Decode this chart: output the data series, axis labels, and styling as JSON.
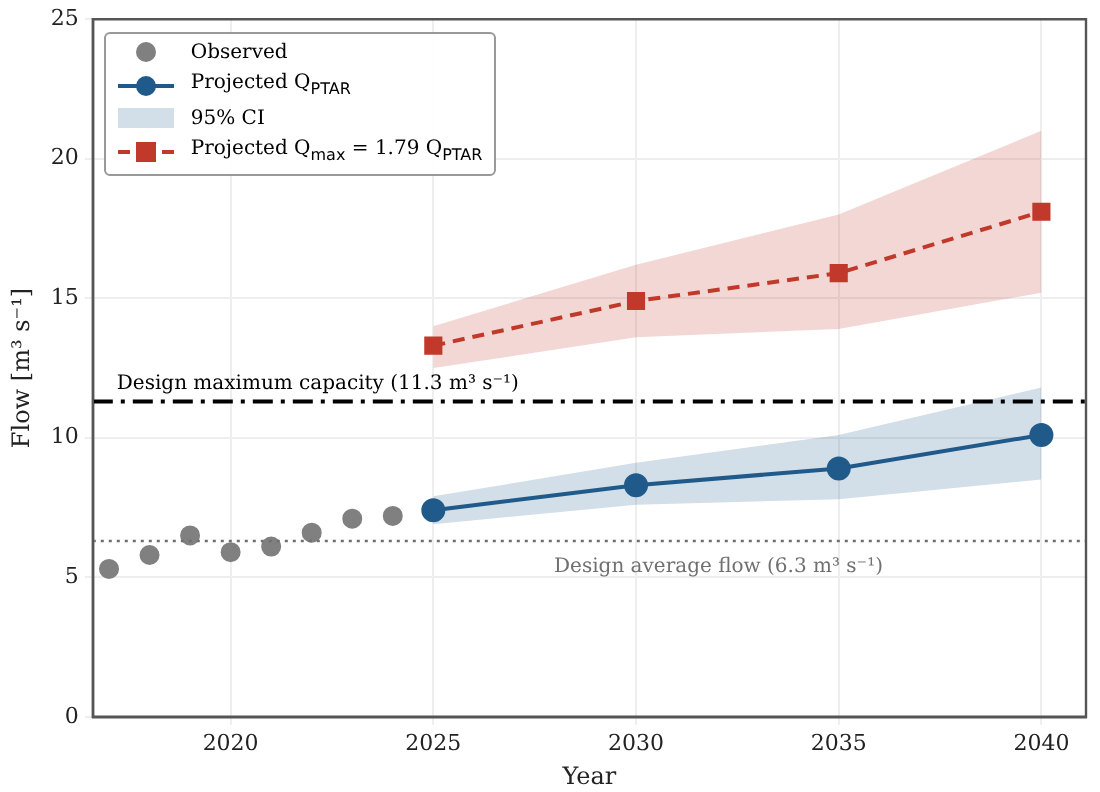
{
  "chart_data": {
    "type": "line",
    "xlabel": "Year",
    "ylabel": "Flow [m³ s⁻¹]",
    "xlim": [
      2016.6,
      2041.1
    ],
    "xticks": [
      2020,
      2025,
      2030,
      2035,
      2040
    ],
    "ylim": [
      0,
      25
    ],
    "yticks": [
      0,
      5,
      10,
      15,
      20,
      25
    ],
    "grid": true,
    "legend": "top left",
    "annotations": [
      "95% CI"
    ],
    "series": [
      {
        "name": "Observed",
        "type": "scatter",
        "color": "#808080",
        "marker": "circle",
        "x": [
          2017,
          2018,
          2019,
          2020,
          2021,
          2022,
          2023,
          2024
        ],
        "values": [
          5.3,
          5.8,
          6.5,
          5.9,
          6.1,
          6.6,
          7.1,
          7.2
        ]
      },
      {
        "name": "Projected Q$_{PTAR}$",
        "color": "#1f5a8a",
        "marker": "circle",
        "line_style": "solid",
        "x": [
          2025,
          2030,
          2035,
          2040
        ],
        "values": [
          7.4,
          8.3,
          8.9,
          10.1
        ],
        "lower": [
          6.9,
          7.6,
          7.8,
          8.5
        ],
        "upper": [
          7.9,
          9.1,
          10.1,
          11.8
        ]
      },
      {
        "name": "Projected Q$_{max}$ = 1.79 Q$_{PTAR}$",
        "color": "#c0392b",
        "marker": "square",
        "line_style": "dashed",
        "x": [
          2025,
          2030,
          2035,
          2040
        ],
        "values": [
          13.3,
          14.9,
          15.9,
          18.1
        ],
        "lower": [
          12.5,
          13.6,
          13.9,
          15.2
        ],
        "upper": [
          14.0,
          16.2,
          18.0,
          21.0
        ]
      }
    ],
    "ref_lines": [
      {
        "axis": "y",
        "value": 11.3,
        "label": "Design maximum capacity (11.3 m³ s⁻¹)",
        "color": "#000000",
        "line_style": "dashdot"
      },
      {
        "axis": "y",
        "value": 6.3,
        "label": "Design average flow (6.3 m³ s⁻¹)",
        "color": "#707070",
        "line_style": "dotted"
      }
    ]
  }
}
